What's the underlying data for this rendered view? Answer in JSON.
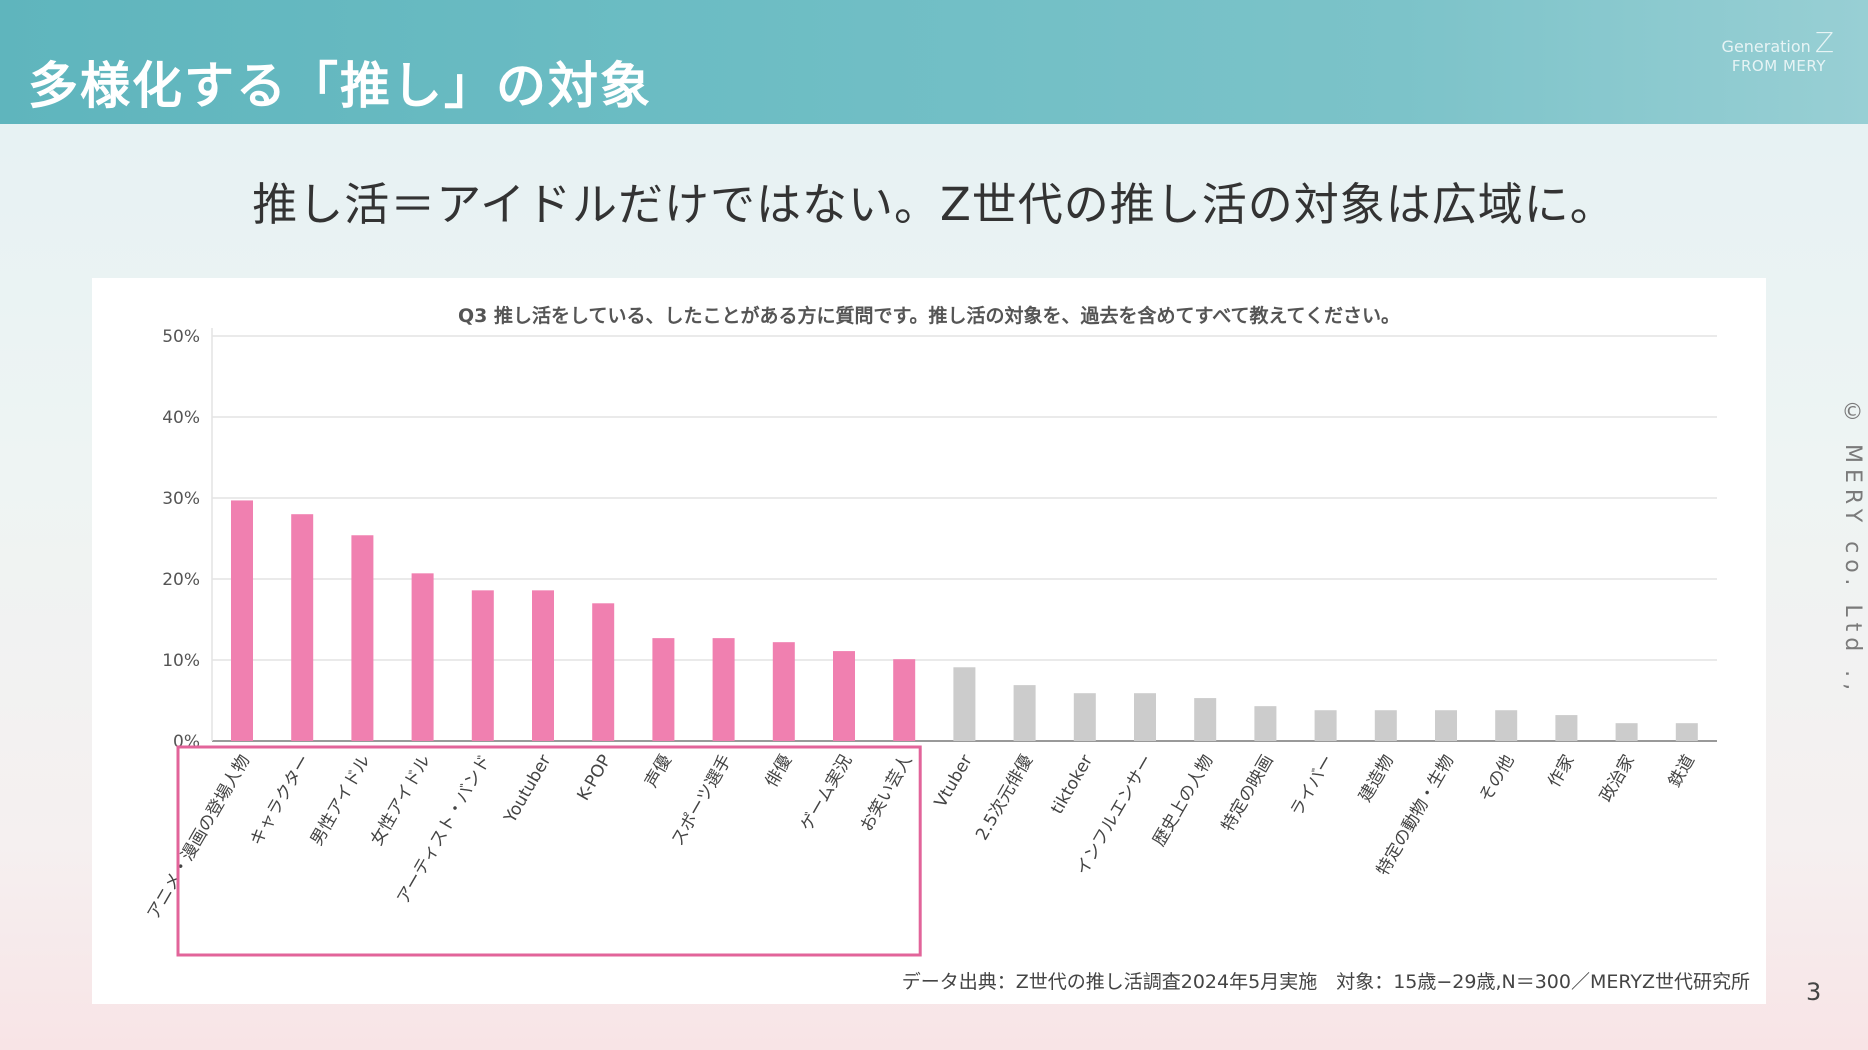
{
  "slide": {
    "title": "多様化する「推し」の対象",
    "subtitle": "推し活＝アイドルだけではない。Z世代の推し活の対象は広域に。",
    "brand_generation": "Generation",
    "brand_z": "Z",
    "brand_from": "FROM MERY",
    "copyright": "© MERY co. Ltd .,",
    "page_number": "3",
    "source": "データ出典：Z世代の推し活調査2024年5月実施　対象：15歳−29歳,N＝300／MERYZ世代研究所"
  },
  "colors": {
    "highlight_bar": "#f080b0",
    "other_bar": "#cccccc",
    "highlight_box": "#e2649a",
    "header_band": "#6dbdc4"
  },
  "chart_data": {
    "type": "bar",
    "title": "Q3 推し活をしている、したことがある方に質問です。推し活の対象を、過去を含めてすべて教えてください。",
    "categories": [
      "アニメ・漫画の登場人物",
      "キャラクター",
      "男性アイドル",
      "女性アイドル",
      "アーティスト・バンド",
      "Youtuber",
      "K-POP",
      "声優",
      "スポーツ選手",
      "俳優",
      "ゲーム実況",
      "お笑い芸人",
      "Vtuber",
      "2.5次元俳優",
      "tiktoker",
      "インフルエンサー",
      "歴史上の人物",
      "特定の映画",
      "ライバー",
      "建造物",
      "特定の動物・生物",
      "その他",
      "作家",
      "政治家",
      "鉄道"
    ],
    "values": [
      29.7,
      28.0,
      25.4,
      20.7,
      18.6,
      18.6,
      17.0,
      12.7,
      12.7,
      12.2,
      11.1,
      10.1,
      9.1,
      6.9,
      5.9,
      5.9,
      5.3,
      4.3,
      3.8,
      3.8,
      3.8,
      3.8,
      3.2,
      2.2,
      2.2
    ],
    "highlighted_count": 12,
    "yticks": [
      "0%",
      "10%",
      "20%",
      "30%",
      "40%",
      "50%"
    ],
    "ylim": [
      0,
      50
    ],
    "grid": true,
    "legend": "none"
  }
}
